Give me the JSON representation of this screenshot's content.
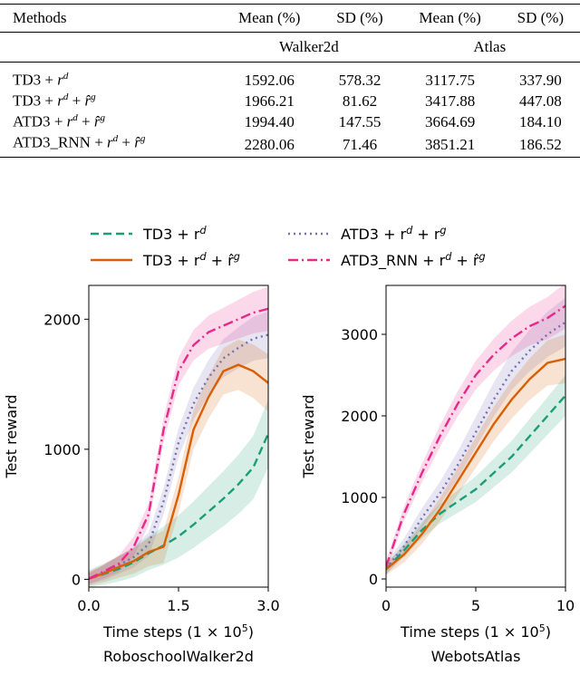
{
  "table": {
    "headers": [
      "Methods",
      "Mean (%)",
      "SD (%)",
      "Mean (%)",
      "SD (%)"
    ],
    "groups": [
      "Walker2d",
      "Atlas"
    ],
    "rows": [
      {
        "method_base": "TD3",
        "walker_mean": "1592.06",
        "walker_sd": "578.32",
        "atlas_mean": "3117.75",
        "atlas_sd": "337.90"
      },
      {
        "method_base": "TD3",
        "walker_mean": "1966.21",
        "walker_sd": "81.62",
        "atlas_mean": "3417.88",
        "atlas_sd": "447.08"
      },
      {
        "method_base": "ATD3",
        "walker_mean": "1994.40",
        "walker_sd": "147.55",
        "atlas_mean": "3664.69",
        "atlas_sd": "184.10"
      },
      {
        "method_base": "ATD3_RNN",
        "walker_mean": "2280.06",
        "walker_sd": "71.46",
        "atlas_mean": "3851.21",
        "atlas_sd": "186.52"
      }
    ]
  },
  "legend": [
    "TD3 + r^d",
    "ATD3 + r^d + r^g",
    "TD3 + r^d + r̂^g",
    "ATD3_RNN + r^d + r̂^g"
  ],
  "chart_data": [
    {
      "type": "line",
      "title": "RoboschoolWalker2d",
      "xlabel": "Time steps (1 × 10^5)",
      "ylabel": "Test reward",
      "xlim": [
        0,
        3.0
      ],
      "ylim": [
        -60,
        2260
      ],
      "xticks": [
        "0.0",
        "1.5",
        "3.0"
      ],
      "yticks": [
        "0",
        "1000",
        "2000"
      ],
      "x": [
        0.0,
        0.25,
        0.5,
        0.75,
        1.0,
        1.25,
        1.5,
        1.75,
        2.0,
        2.25,
        2.5,
        2.75,
        3.0
      ],
      "series": [
        {
          "name": "TD3 + r^d",
          "color": "#1b9e77",
          "dash": "dashed",
          "values": [
            5,
            40,
            80,
            130,
            200,
            260,
            330,
            420,
            520,
            620,
            730,
            860,
            1120
          ],
          "band": 260
        },
        {
          "name": "ATD3 + r^d + r^g",
          "color": "#7570b3",
          "dash": "dotted",
          "values": [
            5,
            50,
            110,
            170,
            270,
            600,
            1050,
            1350,
            1550,
            1700,
            1780,
            1850,
            1880
          ],
          "band": 180
        },
        {
          "name": "TD3 + r^d + r̂^g",
          "color": "#d95f02",
          "dash": "solid",
          "values": [
            5,
            45,
            95,
            140,
            210,
            250,
            650,
            1150,
            1400,
            1600,
            1650,
            1600,
            1510
          ],
          "band": 220
        },
        {
          "name": "ATD3_RNN + r^d + r̂^g",
          "color": "#e7298a",
          "dash": "dashdot",
          "values": [
            5,
            60,
            120,
            250,
            500,
            1150,
            1600,
            1800,
            1900,
            1950,
            2000,
            2050,
            2080
          ],
          "band": 170
        }
      ]
    },
    {
      "type": "line",
      "title": "WebotsAtlas",
      "xlabel": "Time steps (1 × 10^5)",
      "ylabel": "Test reward",
      "xlim": [
        0,
        10
      ],
      "ylim": [
        -100,
        3600
      ],
      "xticks": [
        "0",
        "5",
        "10"
      ],
      "yticks": [
        "0",
        "1000",
        "2000",
        "3000"
      ],
      "x": [
        0,
        1,
        2,
        3,
        4,
        5,
        6,
        7,
        8,
        9,
        10
      ],
      "series": [
        {
          "name": "TD3 + r^d",
          "color": "#1b9e77",
          "dash": "dashed",
          "values": [
            120,
            350,
            600,
            800,
            950,
            1100,
            1300,
            1500,
            1750,
            2000,
            2250
          ],
          "band": 250
        },
        {
          "name": "ATD3 + r^d + r^g",
          "color": "#7570b3",
          "dash": "dotted",
          "values": [
            130,
            400,
            750,
            1050,
            1400,
            1800,
            2200,
            2550,
            2800,
            3000,
            3150
          ],
          "band": 300
        },
        {
          "name": "TD3 + r^d + r̂^g",
          "color": "#d95f02",
          "dash": "solid",
          "values": [
            120,
            300,
            550,
            850,
            1200,
            1550,
            1900,
            2200,
            2450,
            2650,
            2700
          ],
          "band": 300
        },
        {
          "name": "ATD3_RNN + r^d + r̂^g",
          "color": "#e7298a",
          "dash": "dashdot",
          "values": [
            150,
            800,
            1300,
            1750,
            2150,
            2500,
            2750,
            2950,
            3100,
            3200,
            3350
          ],
          "band": 280
        }
      ]
    }
  ]
}
